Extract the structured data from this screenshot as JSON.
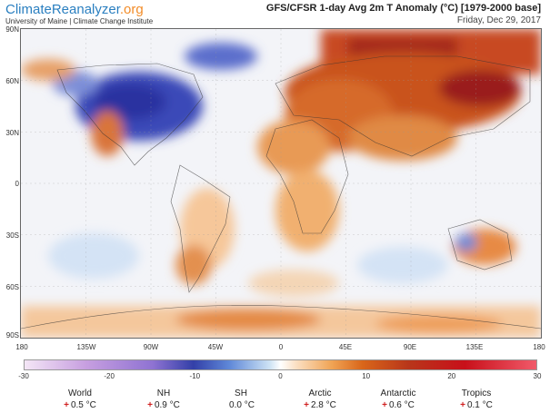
{
  "header": {
    "logo_main": "ClimateReanalyzer",
    "logo_domain": ".org",
    "logo_sub": "University of Maine | Climate Change Institute",
    "title": "GFS/CFSR 1-day Avg 2m T Anomaly (°C) [1979-2000 base]",
    "date": "Friday, Dec 29, 2017"
  },
  "map": {
    "lat_labels": [
      "90N",
      "60N",
      "30N",
      "0",
      "30S",
      "60S",
      "90S"
    ],
    "lon_labels": [
      "180",
      "135W",
      "90W",
      "45W",
      "0",
      "45E",
      "90E",
      "135E",
      "180"
    ]
  },
  "colorbar": {
    "ticks": [
      "-30",
      "-20",
      "-10",
      "0",
      "10",
      "20",
      "30"
    ],
    "colors": [
      "#f4e6f6",
      "#8f73d2",
      "#3340a8",
      "#ffffff",
      "#d9661a",
      "#c8101a",
      "#f15a6a"
    ]
  },
  "stats": [
    {
      "name": "World",
      "sign": "+",
      "value": "0.5 °C"
    },
    {
      "name": "NH",
      "sign": "+",
      "value": "0.9 °C"
    },
    {
      "name": "SH",
      "sign": "",
      "value": "0.0 °C"
    },
    {
      "name": "Arctic",
      "sign": "+",
      "value": "2.8 °C"
    },
    {
      "name": "Antarctic",
      "sign": "+",
      "value": "0.6 °C"
    },
    {
      "name": "Tropics",
      "sign": "+",
      "value": "0.1 °C"
    }
  ]
}
